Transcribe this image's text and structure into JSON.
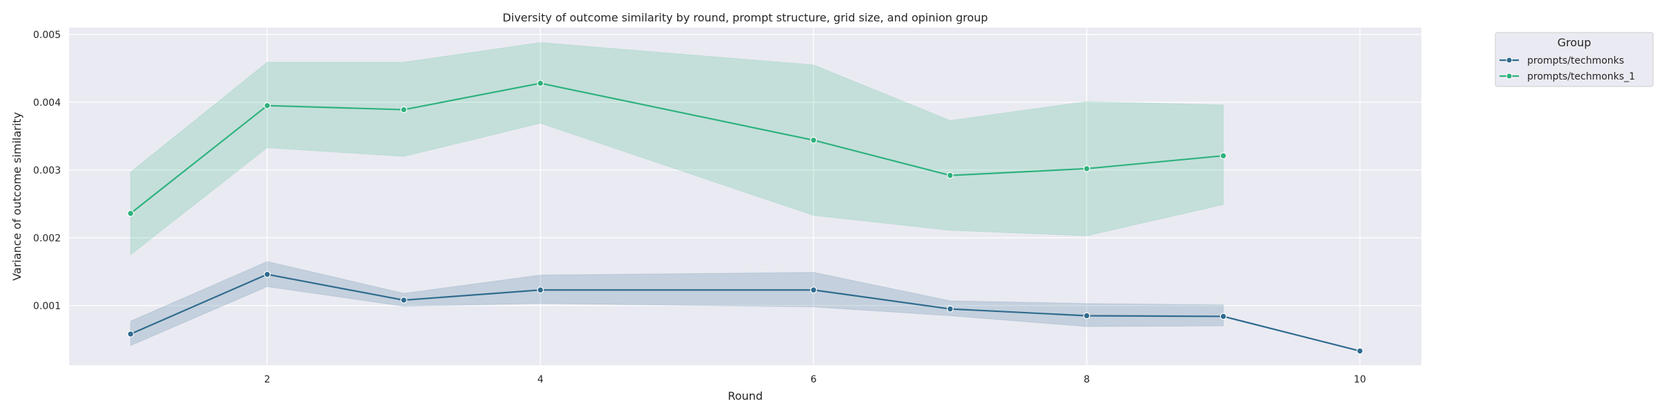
{
  "chart_data": {
    "type": "line",
    "title": "Diversity of outcome similarity by round, prompt structure, grid size, and opinion group",
    "xlabel": "Round",
    "ylabel": "Variance of outcome similarity",
    "xlim": [
      0.55,
      10.45
    ],
    "ylim": [
      0.00012,
      0.0051
    ],
    "x_ticks": [
      2,
      4,
      6,
      8,
      10
    ],
    "y_ticks": [
      0.001,
      0.002,
      0.003,
      0.004,
      0.005
    ],
    "grid": true,
    "legend": {
      "title": "Group",
      "placement": "outside-top-right"
    },
    "series": [
      {
        "name": "prompts/techmonks",
        "color": "#2e6b8e",
        "x": [
          1,
          2,
          3,
          4,
          6,
          7,
          8,
          9,
          10
        ],
        "y": [
          0.00058,
          0.00146,
          0.00108,
          0.00123,
          0.00123,
          0.00095,
          0.00085,
          0.00084,
          0.00033
        ],
        "ci_low": [
          0.00041,
          0.00128,
          0.00099,
          0.00103,
          0.00098,
          0.00085,
          0.00069,
          0.0007,
          null
        ],
        "ci_high": [
          0.00077,
          0.00165,
          0.00118,
          0.00145,
          0.00149,
          0.00107,
          0.00103,
          0.00101,
          null
        ]
      },
      {
        "name": "prompts/techmonks_1",
        "color": "#2db27d",
        "x": [
          1,
          2,
          3,
          4,
          6,
          7,
          8,
          9
        ],
        "y": [
          0.00236,
          0.00395,
          0.00389,
          0.00428,
          0.00344,
          0.00292,
          0.00302,
          0.00321
        ],
        "ci_low": [
          0.00175,
          0.00333,
          0.0032,
          0.00369,
          0.00233,
          0.00211,
          0.00203,
          0.00249
        ],
        "ci_high": [
          0.00297,
          0.00459,
          0.00459,
          0.00488,
          0.00455,
          0.00373,
          0.00401,
          0.00396
        ]
      }
    ]
  }
}
